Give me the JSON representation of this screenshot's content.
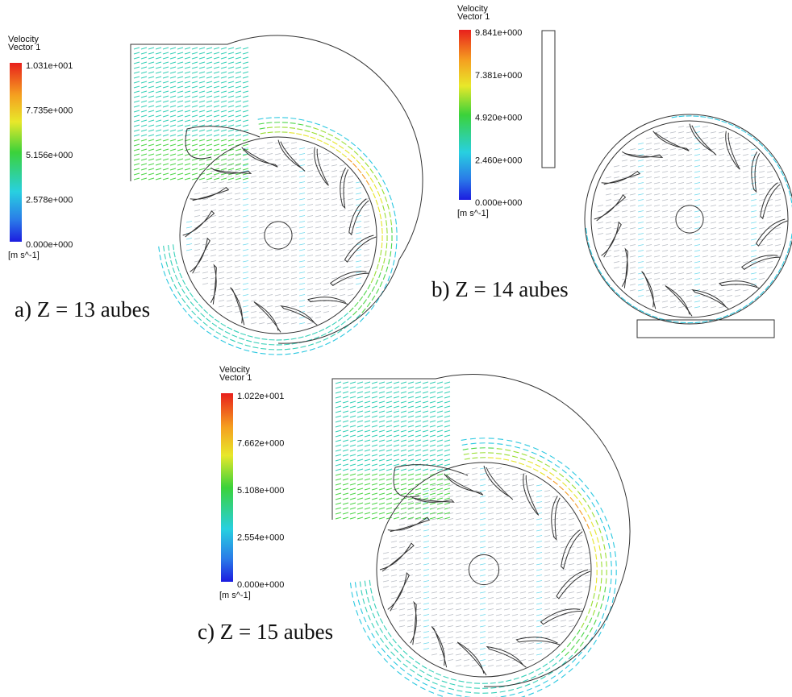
{
  "panels": [
    {
      "legend": {
        "title": "Velocity",
        "subtitle": "Vector 1",
        "ticks": [
          "1.031e+001",
          "7.735e+000",
          "5.156e+000",
          "2.578e+000",
          "0.000e+000"
        ],
        "units": "[m s^-1]"
      },
      "caption": "a)  Z = 13 aubes"
    },
    {
      "legend": {
        "title": "Velocity",
        "subtitle": "Vector 1",
        "ticks": [
          "9.841e+000",
          "7.381e+000",
          "4.920e+000",
          "2.460e+000",
          "0.000e+000"
        ],
        "units": "[m s^-1]"
      },
      "caption": "b) Z = 14 aubes"
    },
    {
      "legend": {
        "title": "Velocity",
        "subtitle": "Vector 1",
        "ticks": [
          "1.022e+001",
          "7.662e+000",
          "5.108e+000",
          "2.554e+000",
          "0.000e+000"
        ],
        "units": "[m s^-1]"
      },
      "caption": "c) Z = 15 aubes"
    }
  ]
}
